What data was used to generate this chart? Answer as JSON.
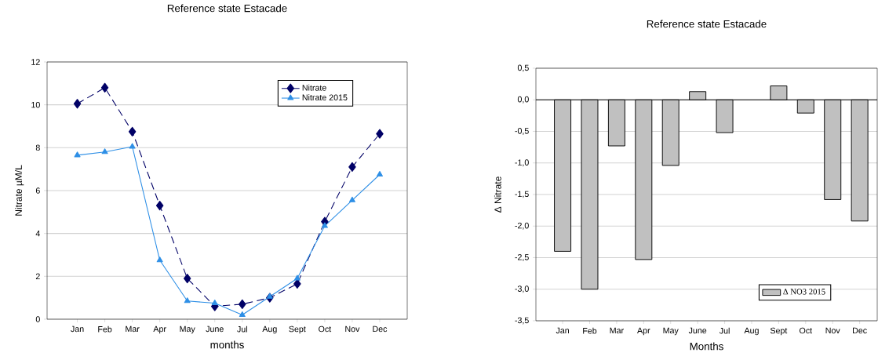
{
  "chart_data": [
    {
      "type": "line",
      "title": "Reference state Estacade",
      "xlabel": "months",
      "ylabel": "Nitrate µM/L",
      "categories": [
        "Jan",
        "Feb",
        "Mar",
        "Apr",
        "May",
        "June",
        "Jul",
        "Aug",
        "Sept",
        "Oct",
        "Nov",
        "Dec"
      ],
      "series": [
        {
          "name": "Nitrate",
          "color": "#000066",
          "marker": "diamond",
          "line_style": "dashed",
          "values": [
            10.05,
            10.8,
            8.75,
            5.3,
            1.9,
            0.6,
            0.7,
            1.0,
            1.65,
            4.55,
            7.1,
            8.65
          ]
        },
        {
          "name": "Nitrate 2015",
          "color": "#2e8fe6",
          "marker": "triangle",
          "line_style": "solid",
          "values": [
            7.65,
            7.8,
            8.05,
            2.75,
            0.85,
            0.75,
            0.2,
            1.05,
            1.9,
            4.35,
            5.55,
            6.75
          ]
        }
      ],
      "ylim": [
        0,
        12
      ],
      "yticks": [
        0,
        2,
        4,
        6,
        8,
        10,
        12
      ],
      "grid": "y",
      "legend": "top right"
    },
    {
      "type": "bar",
      "title": "Reference state Estacade",
      "xlabel": "Months",
      "ylabel": "Δ Nitrate",
      "categories": [
        "Jan",
        "Feb",
        "Mar",
        "Apr",
        "May",
        "June",
        "Jul",
        "Aug",
        "Sept",
        "Oct",
        "Nov",
        "Dec"
      ],
      "series": [
        {
          "name": "Δ NO3 2015",
          "color": "#c0c0c0",
          "values": [
            -2.4,
            -3.0,
            -0.73,
            -2.53,
            -1.04,
            0.13,
            -0.52,
            null,
            0.22,
            -0.21,
            -1.58,
            -1.92
          ]
        }
      ],
      "ylim": [
        -3.5,
        0.5
      ],
      "yticks": [
        {
          "value": -3.5,
          "label": "-3,5"
        },
        {
          "value": -3.0,
          "label": "-3,0"
        },
        {
          "value": -2.5,
          "label": "-2,5"
        },
        {
          "value": -2.0,
          "label": "-2,0"
        },
        {
          "value": -1.5,
          "label": "-1,5"
        },
        {
          "value": -1.0,
          "label": "-1,0"
        },
        {
          "value": -0.5,
          "label": "-0,5"
        },
        {
          "value": 0.0,
          "label": "0,0"
        },
        {
          "value": 0.5,
          "label": "0,5"
        }
      ],
      "grid": "y",
      "legend": "bottom right"
    }
  ]
}
